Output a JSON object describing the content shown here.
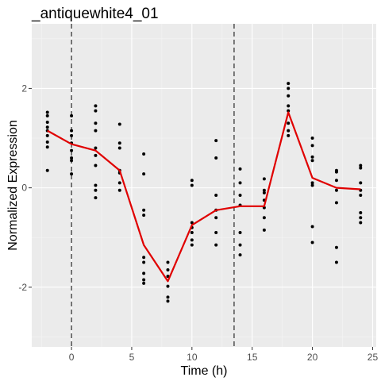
{
  "chart_data": {
    "type": "scatter",
    "title": "_antiquewhite4_01",
    "xlabel": "Time (h)",
    "ylabel": "Normalized Expression",
    "xlim": [
      -3.3,
      25.3
    ],
    "ylim": [
      -3.2,
      3.3
    ],
    "x_ticks": [
      0,
      5,
      10,
      15,
      20,
      25
    ],
    "y_ticks": [
      -2,
      0,
      2
    ],
    "grid": true,
    "vlines": [
      0,
      13.5
    ],
    "points": [
      {
        "x": -2,
        "y": 1.52
      },
      {
        "x": -2,
        "y": 1.45
      },
      {
        "x": -2,
        "y": 1.32
      },
      {
        "x": -2,
        "y": 1.22
      },
      {
        "x": -2,
        "y": 1.15
      },
      {
        "x": -2,
        "y": 1.05
      },
      {
        "x": -2,
        "y": 0.92
      },
      {
        "x": -2,
        "y": 0.82
      },
      {
        "x": -2,
        "y": 0.35
      },
      {
        "x": 0,
        "y": 1.45
      },
      {
        "x": 0,
        "y": 1.15
      },
      {
        "x": 0,
        "y": 1.05
      },
      {
        "x": 0,
        "y": 0.9
      },
      {
        "x": 0,
        "y": 0.75
      },
      {
        "x": 0,
        "y": 0.6
      },
      {
        "x": 0,
        "y": 0.55
      },
      {
        "x": 0,
        "y": 0.28
      },
      {
        "x": 2,
        "y": 1.65
      },
      {
        "x": 2,
        "y": 1.55
      },
      {
        "x": 2,
        "y": 1.3
      },
      {
        "x": 2,
        "y": 1.15
      },
      {
        "x": 2,
        "y": 0.8
      },
      {
        "x": 2,
        "y": 0.65
      },
      {
        "x": 2,
        "y": 0.45
      },
      {
        "x": 2,
        "y": 0.05
      },
      {
        "x": 2,
        "y": -0.05
      },
      {
        "x": 2,
        "y": -0.2
      },
      {
        "x": 4,
        "y": 1.28
      },
      {
        "x": 4,
        "y": 0.9
      },
      {
        "x": 4,
        "y": 0.8
      },
      {
        "x": 4,
        "y": 0.35
      },
      {
        "x": 4,
        "y": 0.3
      },
      {
        "x": 4,
        "y": 0.1
      },
      {
        "x": 4,
        "y": -0.05
      },
      {
        "x": 6,
        "y": 0.68
      },
      {
        "x": 6,
        "y": 0.28
      },
      {
        "x": 6,
        "y": -0.45
      },
      {
        "x": 6,
        "y": -0.55
      },
      {
        "x": 6,
        "y": -1.4
      },
      {
        "x": 6,
        "y": -1.5
      },
      {
        "x": 6,
        "y": -1.72
      },
      {
        "x": 6,
        "y": -1.85
      },
      {
        "x": 6,
        "y": -1.92
      },
      {
        "x": 8,
        "y": -1.5
      },
      {
        "x": 8,
        "y": -1.65
      },
      {
        "x": 8,
        "y": -1.78
      },
      {
        "x": 8,
        "y": -1.98
      },
      {
        "x": 8,
        "y": -2.2
      },
      {
        "x": 8,
        "y": -2.28
      },
      {
        "x": 10,
        "y": 0.15
      },
      {
        "x": 10,
        "y": 0.05
      },
      {
        "x": 10,
        "y": -0.7
      },
      {
        "x": 10,
        "y": -0.8
      },
      {
        "x": 10,
        "y": -0.9
      },
      {
        "x": 10,
        "y": -1.05
      },
      {
        "x": 10,
        "y": -1.15
      },
      {
        "x": 12,
        "y": 0.95
      },
      {
        "x": 12,
        "y": 0.6
      },
      {
        "x": 12,
        "y": -0.15
      },
      {
        "x": 12,
        "y": -0.45
      },
      {
        "x": 12,
        "y": -0.6
      },
      {
        "x": 12,
        "y": -0.9
      },
      {
        "x": 12,
        "y": -1.15
      },
      {
        "x": 14,
        "y": 0.38
      },
      {
        "x": 14,
        "y": 0.1
      },
      {
        "x": 14,
        "y": -0.15
      },
      {
        "x": 14,
        "y": -0.35
      },
      {
        "x": 14,
        "y": -0.9
      },
      {
        "x": 14,
        "y": -1.15
      },
      {
        "x": 14,
        "y": -1.35
      },
      {
        "x": 16,
        "y": 0.18
      },
      {
        "x": 16,
        "y": -0.05
      },
      {
        "x": 16,
        "y": -0.1
      },
      {
        "x": 16,
        "y": -0.25
      },
      {
        "x": 16,
        "y": -0.4
      },
      {
        "x": 16,
        "y": -0.6
      },
      {
        "x": 16,
        "y": -0.85
      },
      {
        "x": 18,
        "y": 2.1
      },
      {
        "x": 18,
        "y": 2.0
      },
      {
        "x": 18,
        "y": 1.85
      },
      {
        "x": 18,
        "y": 1.65
      },
      {
        "x": 18,
        "y": 1.55
      },
      {
        "x": 18,
        "y": 1.3
      },
      {
        "x": 18,
        "y": 1.15
      },
      {
        "x": 18,
        "y": 1.05
      },
      {
        "x": 20,
        "y": 1.0
      },
      {
        "x": 20,
        "y": 0.85
      },
      {
        "x": 20,
        "y": 0.62
      },
      {
        "x": 20,
        "y": 0.55
      },
      {
        "x": 20,
        "y": 0.1
      },
      {
        "x": 20,
        "y": 0.05
      },
      {
        "x": 20,
        "y": -0.78
      },
      {
        "x": 20,
        "y": -1.1
      },
      {
        "x": 22,
        "y": 0.35
      },
      {
        "x": 22,
        "y": 0.32
      },
      {
        "x": 22,
        "y": 0.15
      },
      {
        "x": 22,
        "y": -0.05
      },
      {
        "x": 22,
        "y": -0.3
      },
      {
        "x": 22,
        "y": -1.2
      },
      {
        "x": 22,
        "y": -1.5
      },
      {
        "x": 24,
        "y": 0.45
      },
      {
        "x": 24,
        "y": 0.4
      },
      {
        "x": 24,
        "y": 0.1
      },
      {
        "x": 24,
        "y": -0.05
      },
      {
        "x": 24,
        "y": -0.15
      },
      {
        "x": 24,
        "y": -0.5
      },
      {
        "x": 24,
        "y": -0.6
      },
      {
        "x": 24,
        "y": -0.7
      }
    ],
    "mean_line": {
      "x": [
        -2,
        0,
        2,
        4,
        6,
        8,
        10,
        12,
        14,
        16,
        18,
        20,
        22,
        24
      ],
      "y": [
        1.15,
        0.88,
        0.75,
        0.35,
        -1.15,
        -1.88,
        -0.75,
        -0.45,
        -0.37,
        -0.37,
        1.52,
        0.2,
        0.0,
        -0.03
      ]
    },
    "colors": {
      "panel": "#ebebeb",
      "grid_major": "#ffffff",
      "grid_minor": "#f5f5f5",
      "points": "#000000",
      "mean_line": "#e00000",
      "vline": "#000000"
    }
  }
}
